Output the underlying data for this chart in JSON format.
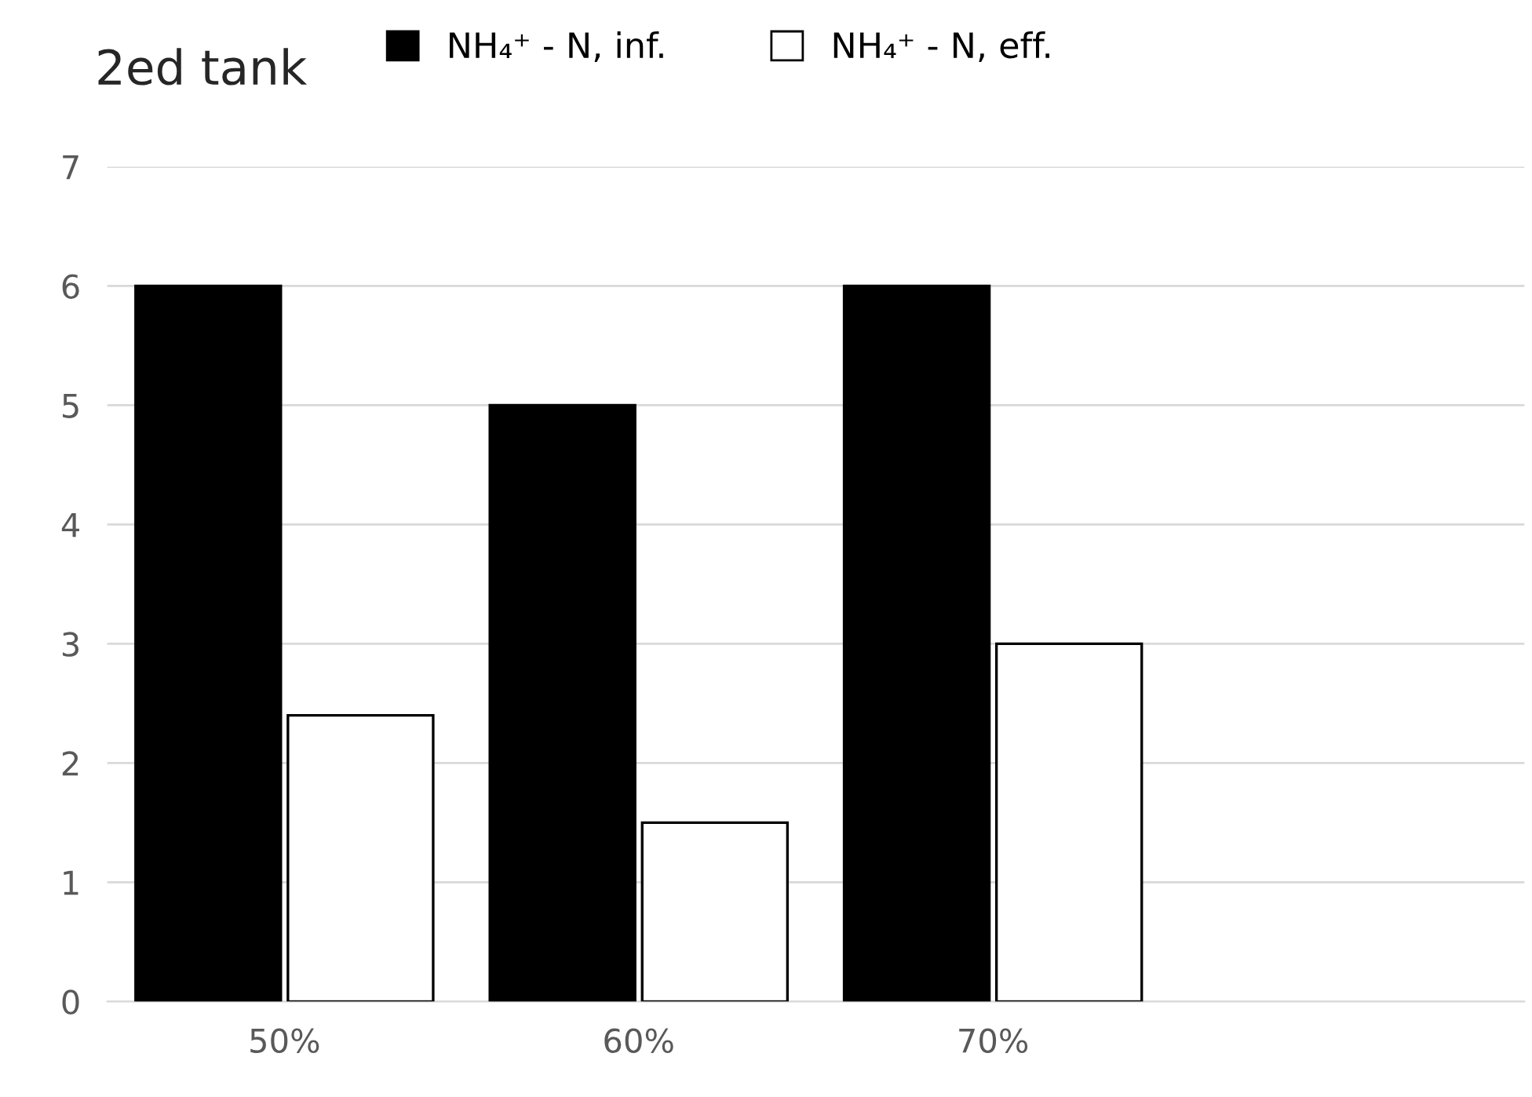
{
  "chart_data": {
    "type": "bar",
    "title": "2ed tank",
    "categories": [
      "50%",
      "60%",
      "70%",
      null
    ],
    "series": [
      {
        "name": "NH₄⁺ - N, inf.",
        "color": "#000000",
        "values": [
          6,
          5,
          6,
          null
        ]
      },
      {
        "name": "NH₄⁺ - N, eff.",
        "color": "#ffffff",
        "values": [
          2.4,
          1.5,
          3.0,
          null
        ]
      }
    ],
    "ylim": [
      0,
      7
    ],
    "yticks": [
      0,
      1,
      2,
      3,
      4,
      5,
      6,
      7
    ],
    "grid": "y",
    "legend": "top"
  }
}
